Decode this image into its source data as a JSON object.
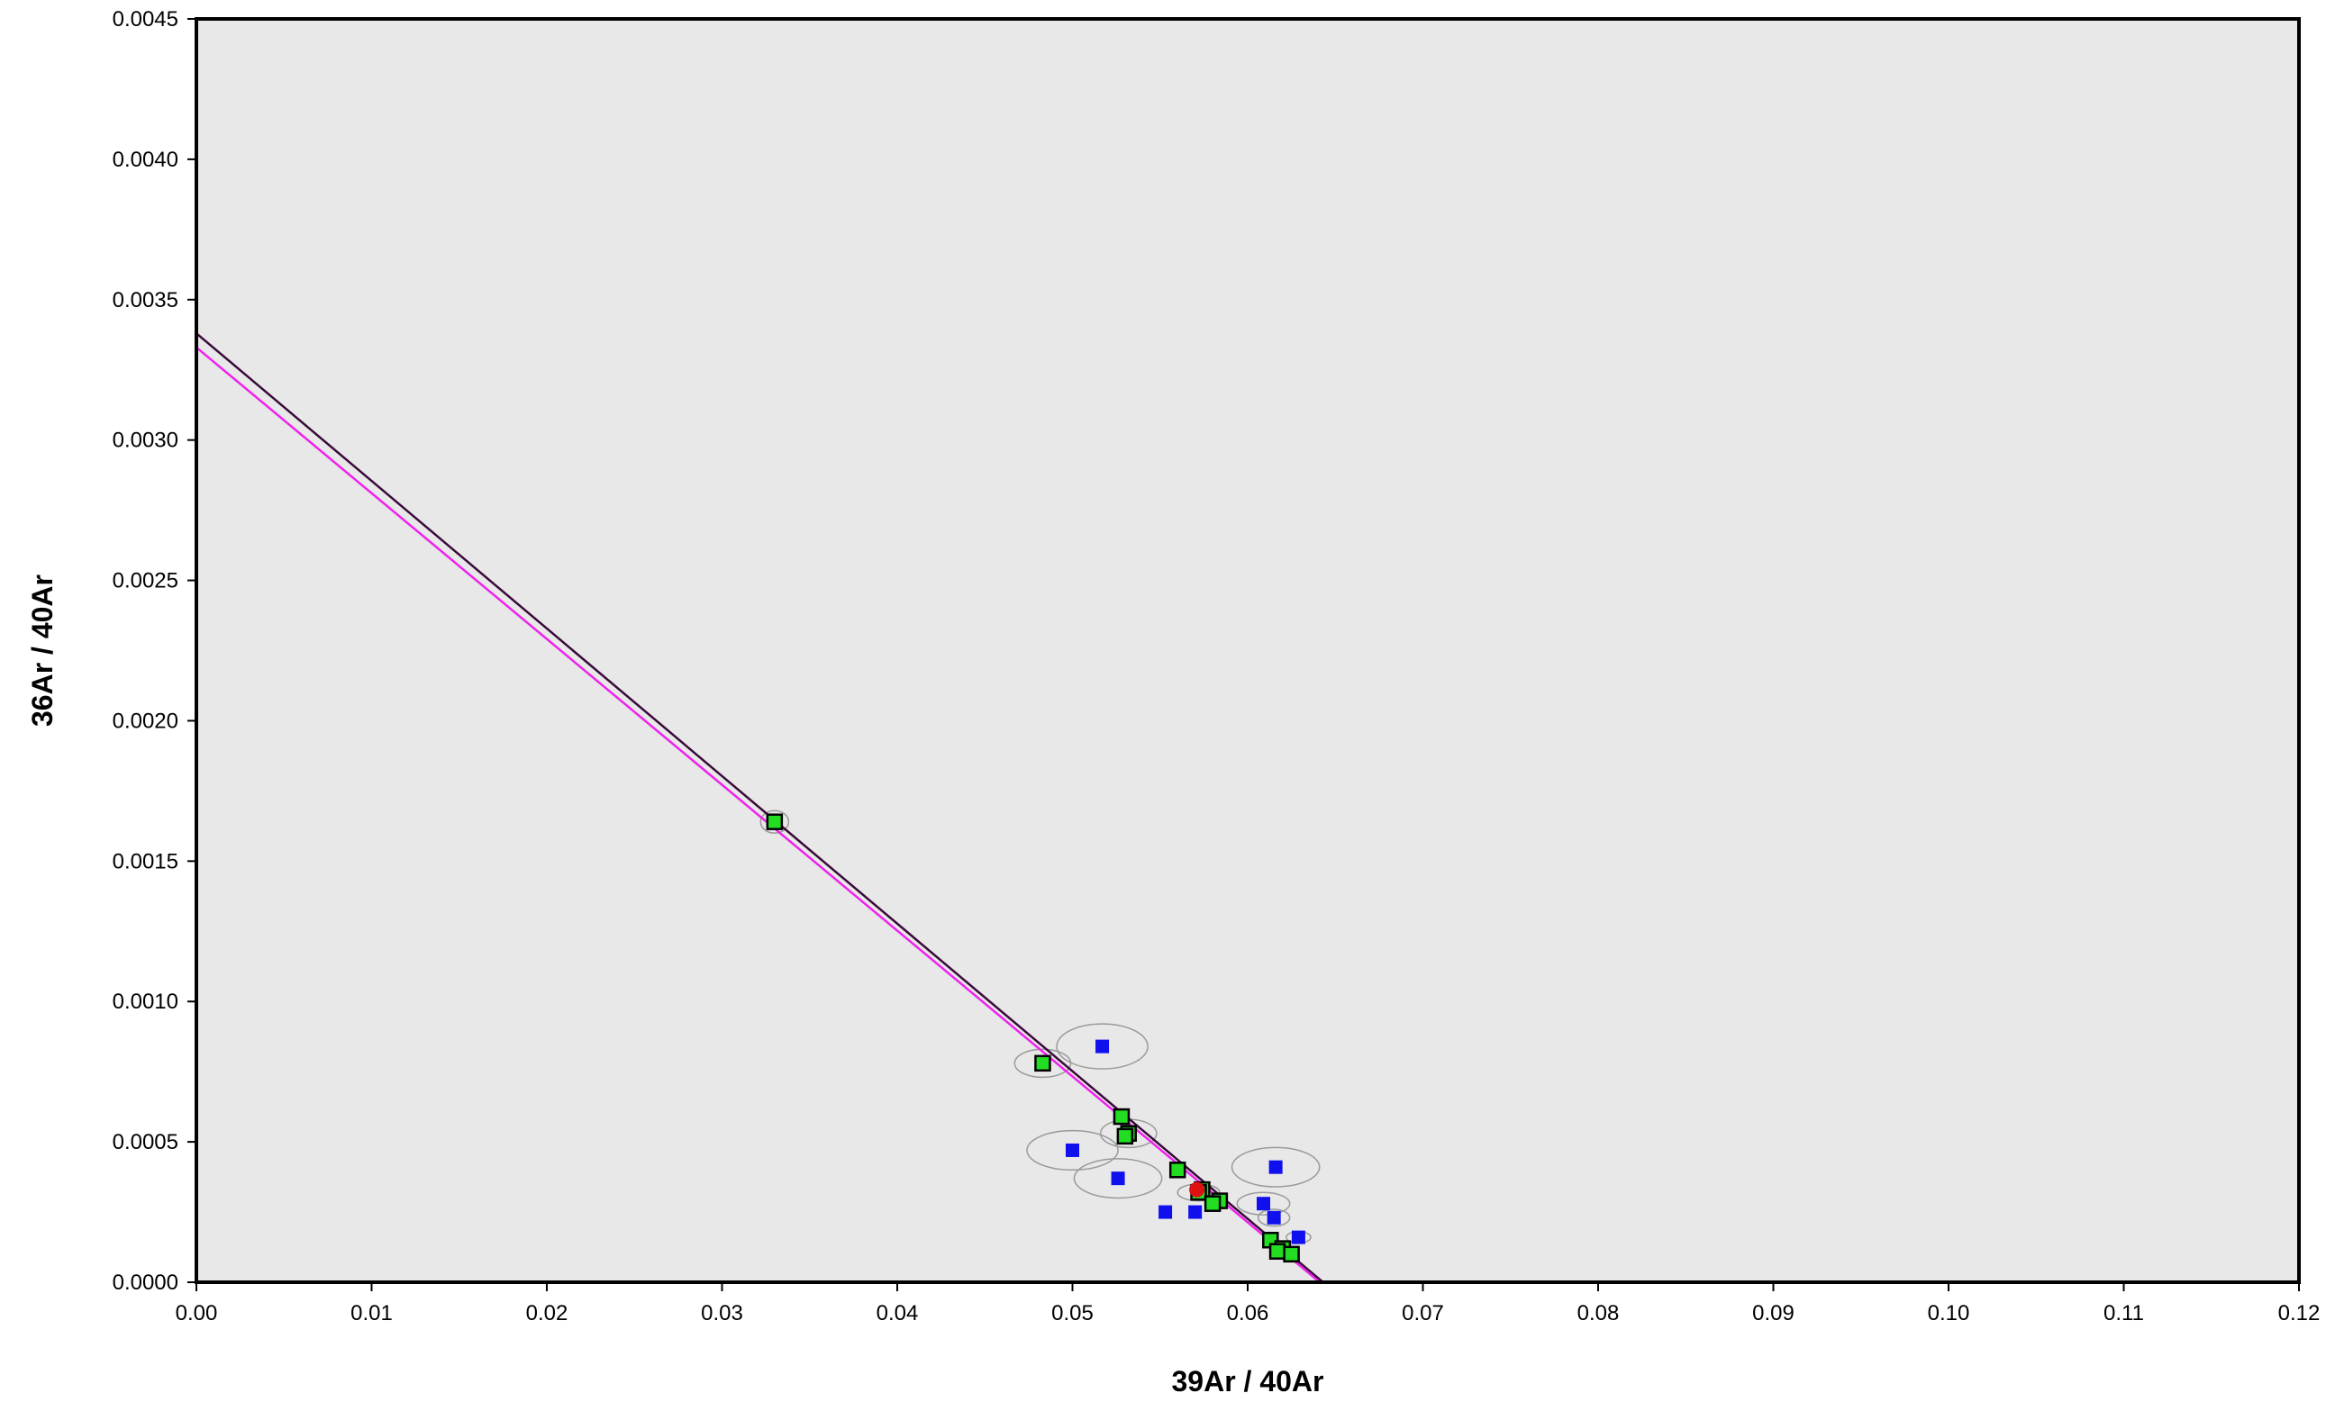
{
  "chart_data": {
    "type": "scatter",
    "title": "",
    "xlabel": "39Ar / 40Ar",
    "ylabel": "36Ar / 40Ar",
    "xlim": [
      0,
      0.12
    ],
    "ylim": [
      0,
      0.0045
    ],
    "x_ticks": [
      "0.00",
      "0.01",
      "0.02",
      "0.03",
      "0.04",
      "0.05",
      "0.06",
      "0.07",
      "0.08",
      "0.09",
      "0.10",
      "0.11",
      "0.12"
    ],
    "y_ticks": [
      "0.0000",
      "0.0005",
      "0.0010",
      "0.0015",
      "0.0020",
      "0.0025",
      "0.0030",
      "0.0035",
      "0.0040",
      "0.0045"
    ],
    "grid": false,
    "plot_background": "#e8e8e8",
    "series": [
      {
        "marker": "square",
        "color": "#22dd22",
        "edge_color": "#000000",
        "points": [
          {
            "x": 0.033,
            "y": 0.00164,
            "ex": 0.0008,
            "ey": 4e-05
          },
          {
            "x": 0.0483,
            "y": 0.00078,
            "ex": 0.0016,
            "ey": 5e-05
          },
          {
            "x": 0.0528,
            "y": 0.00059,
            "ex": 0.0,
            "ey": 0.0
          },
          {
            "x": 0.0532,
            "y": 0.00053,
            "ex": 0.0016,
            "ey": 5e-05
          },
          {
            "x": 0.053,
            "y": 0.00052,
            "ex": 0.0,
            "ey": 0.0
          },
          {
            "x": 0.056,
            "y": 0.0004,
            "ex": 0.0,
            "ey": 0.0
          },
          {
            "x": 0.0574,
            "y": 0.00033,
            "ex": 0.0,
            "ey": 0.0
          },
          {
            "x": 0.0572,
            "y": 0.00032,
            "ex": 0.0012,
            "ey": 3e-05
          },
          {
            "x": 0.0584,
            "y": 0.00029,
            "ex": 0.0,
            "ey": 0.0
          },
          {
            "x": 0.058,
            "y": 0.00028,
            "ex": 0.0,
            "ey": 0.0
          },
          {
            "x": 0.0613,
            "y": 0.00015,
            "ex": 0.0,
            "ey": 0.0
          },
          {
            "x": 0.062,
            "y": 0.00012,
            "ex": 0.0,
            "ey": 0.0
          },
          {
            "x": 0.0617,
            "y": 0.00011,
            "ex": 0.0,
            "ey": 0.0
          },
          {
            "x": 0.0625,
            "y": 0.0001,
            "ex": 0.0,
            "ey": 0.0
          }
        ]
      },
      {
        "marker": "square",
        "color": "#1010ee",
        "edge_color": "#1010ee",
        "points": [
          {
            "x": 0.0517,
            "y": 0.00084,
            "ex": 0.0026,
            "ey": 8e-05
          },
          {
            "x": 0.05,
            "y": 0.00047,
            "ex": 0.0026,
            "ey": 7e-05
          },
          {
            "x": 0.0526,
            "y": 0.00037,
            "ex": 0.0025,
            "ey": 7e-05
          },
          {
            "x": 0.0553,
            "y": 0.00025,
            "ex": 0.0,
            "ey": 0.0
          },
          {
            "x": 0.057,
            "y": 0.00025,
            "ex": 0.0,
            "ey": 0.0
          },
          {
            "x": 0.0616,
            "y": 0.00041,
            "ex": 0.0025,
            "ey": 7e-05
          },
          {
            "x": 0.0609,
            "y": 0.00028,
            "ex": 0.0015,
            "ey": 4e-05
          },
          {
            "x": 0.0615,
            "y": 0.00023,
            "ex": 0.0009,
            "ey": 3e-05
          },
          {
            "x": 0.0629,
            "y": 0.00016,
            "ex": 0.0007,
            "ey": 2e-05
          }
        ]
      },
      {
        "marker": "circle",
        "color": "#dd1111",
        "edge_color": "#dd1111",
        "points": [
          {
            "x": 0.0571,
            "y": 0.00033,
            "ex": 0.0,
            "ey": 0.0
          }
        ]
      }
    ],
    "lines": [
      {
        "color": "#3a0a3a",
        "x": [
          0.0,
          0.0643
        ],
        "y": [
          0.00338,
          0.0
        ]
      },
      {
        "color": "#ee22ee",
        "x": [
          0.0,
          0.0645
        ],
        "y": [
          0.00333,
          -2e-05
        ]
      }
    ]
  }
}
